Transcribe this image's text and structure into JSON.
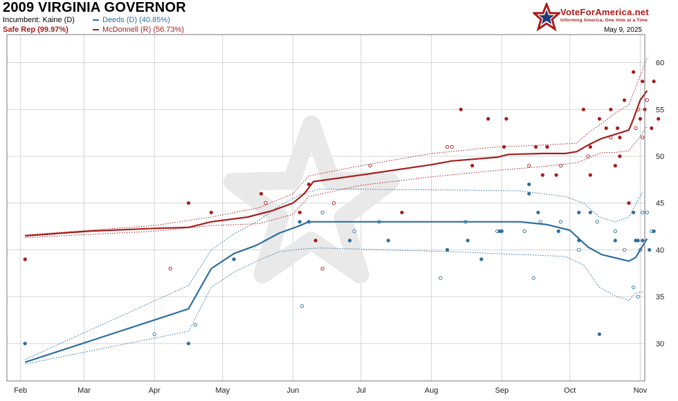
{
  "header": {
    "title": "2009 VIRGINIA GOVERNOR",
    "incumbent": "Incumbent: Kaine (D)",
    "rating": "Safe Rep (99.97%)",
    "brand_name": "VoteForAmerica.net",
    "brand_tagline": "Informing America, One Vote at a Time",
    "date": "May 9, 2025"
  },
  "colors": {
    "dem": "#2c6e9e",
    "rep": "#a81d1d",
    "grid": "#d4d4d4"
  },
  "chart_data": {
    "type": "line",
    "x_ticks": [
      "Feb",
      "Mar",
      "Apr",
      "May",
      "Jun",
      "Jul",
      "Aug",
      "Sep",
      "Oct",
      "Nov"
    ],
    "x_tick_days": [
      0,
      28,
      59,
      89,
      120,
      150,
      181,
      212,
      242,
      273
    ],
    "xlim": [
      -6,
      275
    ],
    "ylim": [
      26,
      63
    ],
    "y_ticks": [
      30,
      35,
      40,
      45,
      50,
      55,
      60
    ],
    "grid": true,
    "legend_position": "top-left",
    "series": [
      {
        "name": "Deeds (D) (40.85%)",
        "party": "dem",
        "trend": [
          [
            2,
            28
          ],
          [
            74,
            33.7
          ],
          [
            84,
            38
          ],
          [
            94,
            39.6
          ],
          [
            104,
            40.5
          ],
          [
            114,
            41.8
          ],
          [
            122,
            42.5
          ],
          [
            127,
            43
          ],
          [
            190,
            43
          ],
          [
            220,
            43
          ],
          [
            232,
            42.7
          ],
          [
            242,
            42.1
          ],
          [
            246,
            41.2
          ],
          [
            250,
            40.3
          ],
          [
            256,
            39.5
          ],
          [
            268,
            38.8
          ],
          [
            271,
            39.2
          ],
          [
            273,
            40
          ],
          [
            276,
            41.2
          ]
        ],
        "upper": [
          [
            2,
            28.3
          ],
          [
            74,
            36.2
          ],
          [
            84,
            40
          ],
          [
            94,
            41.7
          ],
          [
            104,
            43
          ],
          [
            114,
            44.7
          ],
          [
            124,
            46
          ],
          [
            132,
            46.5
          ],
          [
            190,
            46.4
          ],
          [
            220,
            46.3
          ],
          [
            240,
            45.7
          ],
          [
            248,
            45
          ],
          [
            255,
            43.5
          ],
          [
            262,
            43
          ],
          [
            268,
            43.5
          ],
          [
            274,
            46.2
          ]
        ],
        "lower": [
          [
            2,
            27.8
          ],
          [
            74,
            31.3
          ],
          [
            84,
            36
          ],
          [
            94,
            37.6
          ],
          [
            104,
            38.8
          ],
          [
            114,
            39.8
          ],
          [
            124,
            40.1
          ],
          [
            132,
            40.2
          ],
          [
            190,
            39.8
          ],
          [
            220,
            39.5
          ],
          [
            240,
            39.3
          ],
          [
            248,
            38.4
          ],
          [
            255,
            36
          ],
          [
            262,
            35.1
          ],
          [
            268,
            34.6
          ],
          [
            271,
            35.4
          ],
          [
            274,
            35.5
          ]
        ],
        "polls_filled": [
          [
            2,
            30
          ],
          [
            74,
            30
          ],
          [
            94,
            39
          ],
          [
            123,
            43
          ],
          [
            127,
            43
          ],
          [
            145,
            41
          ],
          [
            162,
            41
          ],
          [
            188,
            40
          ],
          [
            197,
            41
          ],
          [
            203,
            39
          ],
          [
            211,
            42
          ],
          [
            212,
            42
          ],
          [
            224,
            46
          ],
          [
            224,
            47
          ],
          [
            228,
            44
          ],
          [
            237,
            42
          ],
          [
            246,
            41
          ],
          [
            246,
            44
          ],
          [
            251,
            44
          ],
          [
            255,
            31
          ],
          [
            262,
            41
          ],
          [
            270,
            44
          ],
          [
            271,
            41
          ],
          [
            272,
            41
          ],
          [
            274,
            41
          ],
          [
            277,
            40
          ],
          [
            279,
            42
          ]
        ],
        "polls_open": [
          [
            59,
            31
          ],
          [
            77,
            32
          ],
          [
            124,
            34
          ],
          [
            133,
            44
          ],
          [
            147,
            42
          ],
          [
            158,
            43
          ],
          [
            185,
            37
          ],
          [
            196,
            43
          ],
          [
            210,
            42
          ],
          [
            222,
            42
          ],
          [
            226,
            37
          ],
          [
            229,
            43
          ],
          [
            238,
            43
          ],
          [
            246,
            40
          ],
          [
            254,
            43
          ],
          [
            262,
            42
          ],
          [
            266,
            40
          ],
          [
            270,
            36
          ],
          [
            272,
            35
          ],
          [
            273,
            40
          ],
          [
            274,
            44
          ],
          [
            276,
            44
          ],
          [
            278,
            42
          ]
        ]
      },
      {
        "name": "McDonnell (R) (56.73%)",
        "party": "rep",
        "trend": [
          [
            2,
            41.5
          ],
          [
            30,
            42
          ],
          [
            59,
            42.3
          ],
          [
            74,
            42.4
          ],
          [
            84,
            43
          ],
          [
            100,
            43.5
          ],
          [
            111,
            44.2
          ],
          [
            120,
            45
          ],
          [
            125,
            46
          ],
          [
            129,
            47.3
          ],
          [
            150,
            48
          ],
          [
            181,
            49.1
          ],
          [
            190,
            49.5
          ],
          [
            210,
            49.9
          ],
          [
            215,
            50.2
          ],
          [
            230,
            50.3
          ],
          [
            240,
            50.3
          ],
          [
            245,
            50.5
          ],
          [
            250,
            51.2
          ],
          [
            256,
            51.9
          ],
          [
            268,
            52.8
          ],
          [
            270,
            54
          ],
          [
            273,
            56
          ],
          [
            276,
            57
          ]
        ],
        "upper": [
          [
            2,
            41.6
          ],
          [
            59,
            42.6
          ],
          [
            84,
            43.5
          ],
          [
            105,
            44.5
          ],
          [
            120,
            46
          ],
          [
            127,
            47.9
          ],
          [
            150,
            49
          ],
          [
            181,
            50.3
          ],
          [
            210,
            51
          ],
          [
            230,
            51.2
          ],
          [
            245,
            51.4
          ],
          [
            250,
            52.5
          ],
          [
            256,
            53.5
          ],
          [
            262,
            54.6
          ],
          [
            268,
            55.5
          ],
          [
            272,
            58
          ],
          [
            276,
            60.5
          ]
        ],
        "lower": [
          [
            2,
            41.3
          ],
          [
            59,
            42
          ],
          [
            84,
            42.6
          ],
          [
            105,
            42.8
          ],
          [
            120,
            43.8
          ],
          [
            127,
            45.7
          ],
          [
            150,
            46.9
          ],
          [
            181,
            47.8
          ],
          [
            210,
            48.5
          ],
          [
            230,
            48.9
          ],
          [
            245,
            49.3
          ],
          [
            250,
            49.8
          ],
          [
            256,
            50.4
          ],
          [
            262,
            50.4
          ],
          [
            268,
            50.6
          ],
          [
            272,
            51.8
          ],
          [
            276,
            53.2
          ]
        ],
        "polls_filled": [
          [
            2,
            39
          ],
          [
            74,
            45
          ],
          [
            84,
            44
          ],
          [
            106,
            46
          ],
          [
            123,
            44
          ],
          [
            127,
            47
          ],
          [
            130,
            41
          ],
          [
            168,
            44
          ],
          [
            194,
            55
          ],
          [
            199,
            49
          ],
          [
            206,
            54
          ],
          [
            213,
            51
          ],
          [
            214,
            54
          ],
          [
            227,
            51
          ],
          [
            230,
            48
          ],
          [
            232,
            51
          ],
          [
            236,
            48
          ],
          [
            248,
            55
          ],
          [
            251,
            48
          ],
          [
            251,
            51
          ],
          [
            255,
            54
          ],
          [
            258,
            53
          ],
          [
            260,
            55
          ],
          [
            262,
            49
          ],
          [
            263,
            53
          ],
          [
            264,
            50
          ],
          [
            264,
            52
          ],
          [
            266,
            56
          ],
          [
            268,
            45
          ],
          [
            270,
            59
          ],
          [
            273,
            54
          ],
          [
            274,
            58
          ],
          [
            275,
            55
          ],
          [
            278,
            53
          ],
          [
            279,
            58
          ],
          [
            281,
            54
          ]
        ],
        "polls_open": [
          [
            66,
            38
          ],
          [
            108,
            45
          ],
          [
            133,
            38
          ],
          [
            138,
            45
          ],
          [
            154,
            49
          ],
          [
            188,
            51
          ],
          [
            190,
            51
          ],
          [
            224,
            49
          ],
          [
            238,
            49
          ],
          [
            250,
            50
          ],
          [
            260,
            52
          ],
          [
            271,
            53
          ],
          [
            272,
            55
          ],
          [
            274,
            52
          ],
          [
            276,
            56
          ]
        ]
      }
    ]
  }
}
